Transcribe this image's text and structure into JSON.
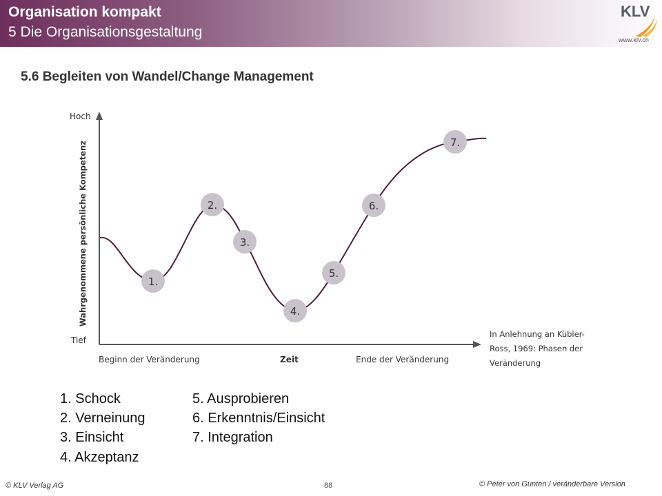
{
  "header": {
    "title": "Organisation kompakt",
    "subtitle": "5 Die Organisationsgestaltung",
    "logo_text": "KLV",
    "logo_url": "www.klv.ch"
  },
  "section_title": "5.6 Begleiten von Wandel/Change Management",
  "diagram": {
    "y_axis_label": "Wahrgenommene persönliche Kompetenz",
    "y_top_label": "Hoch",
    "y_bottom_label": "Tief",
    "x_labels": {
      "start": "Beginn der Veränderung",
      "center": "Zeit",
      "end": "Ende der Veränderung"
    },
    "note": [
      "In Anlehnung an Kübler-",
      "Ross, 1969: Phasen der",
      "Veränderung"
    ],
    "phase_markers": [
      "1.",
      "2.",
      "3.",
      "4.",
      "5.",
      "6.",
      "7."
    ],
    "colors": {
      "curve": "#4a1f3f",
      "marker": "#c9c2cc",
      "axis": "#555555"
    }
  },
  "legend": {
    "left": [
      "1. Schock",
      "2. Verneinung",
      "3. Einsicht",
      "4. Akzeptanz"
    ],
    "right": [
      "5. Ausprobieren",
      "6. Erkenntnis/Einsicht",
      "7. Integration"
    ]
  },
  "footer": {
    "left": "© KLV Verlag AG",
    "page": "88",
    "right": "© Peter von Gunten / veränderbare Version"
  }
}
